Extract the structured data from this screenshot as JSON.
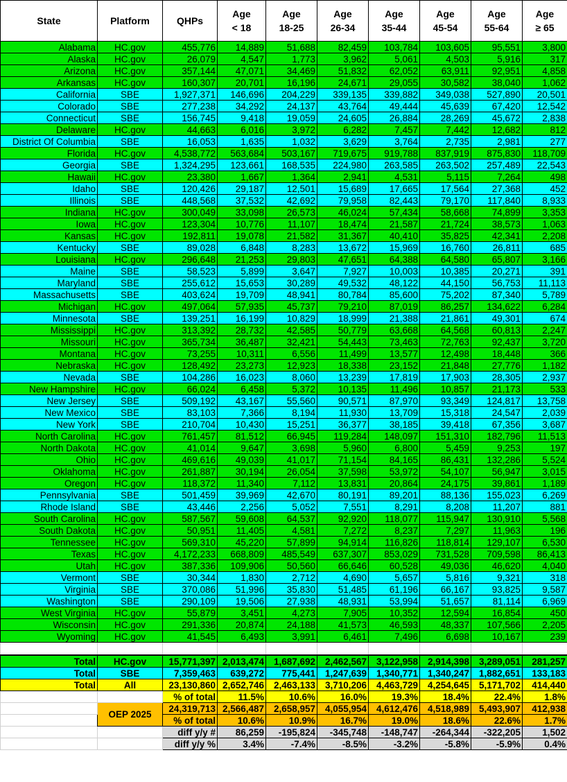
{
  "colors": {
    "hc": "#00e600",
    "sbe": "#00ffff",
    "total": "#ffff00",
    "oep": "#ffc000",
    "diff": "#d9d9d9"
  },
  "headers": [
    "State",
    "Platform",
    "QHPs",
    "Age\n< 18",
    "Age\n18-25",
    "Age\n26-34",
    "Age\n35-44",
    "Age\n45-54",
    "Age\n55-64",
    "Age\n≥ 65"
  ],
  "rows": [
    [
      "Alabama",
      "HC.gov",
      "455,776",
      "14,889",
      "51,688",
      "82,459",
      "103,784",
      "103,605",
      "95,551",
      "3,800"
    ],
    [
      "Alaska",
      "HC.gov",
      "26,079",
      "4,547",
      "1,773",
      "3,962",
      "5,061",
      "4,503",
      "5,916",
      "317"
    ],
    [
      "Arizona",
      "HC.gov",
      "357,144",
      "47,071",
      "34,469",
      "51,832",
      "62,052",
      "63,911",
      "92,951",
      "4,858"
    ],
    [
      "Arkansas",
      "HC.gov",
      "160,307",
      "20,701",
      "16,196",
      "24,671",
      "29,055",
      "30,582",
      "38,040",
      "1,062"
    ],
    [
      "California",
      "SBE",
      "1,927,371",
      "146,696",
      "204,229",
      "339,135",
      "339,882",
      "349,038",
      "527,890",
      "20,501"
    ],
    [
      "Colorado",
      "SBE",
      "277,238",
      "34,292",
      "24,137",
      "43,764",
      "49,444",
      "45,639",
      "67,420",
      "12,542"
    ],
    [
      "Connecticut",
      "SBE",
      "156,745",
      "9,418",
      "19,059",
      "24,605",
      "26,884",
      "28,269",
      "45,672",
      "2,838"
    ],
    [
      "Delaware",
      "HC.gov",
      "44,663",
      "6,016",
      "3,972",
      "6,282",
      "7,457",
      "7,442",
      "12,682",
      "812"
    ],
    [
      "District Of Columbia",
      "SBE",
      "16,053",
      "1,635",
      "1,032",
      "3,629",
      "3,764",
      "2,735",
      "2,981",
      "277"
    ],
    [
      "Florida",
      "HC.gov",
      "4,538,772",
      "563,684",
      "503,167",
      "719,675",
      "919,788",
      "837,919",
      "875,830",
      "118,709"
    ],
    [
      "Georgia",
      "SBE",
      "1,324,295",
      "123,661",
      "168,535",
      "224,980",
      "263,585",
      "263,502",
      "257,489",
      "22,543"
    ],
    [
      "Hawaii",
      "HC.gov",
      "23,380",
      "1,667",
      "1,364",
      "2,941",
      "4,531",
      "5,115",
      "7,264",
      "498"
    ],
    [
      "Idaho",
      "SBE",
      "120,426",
      "29,187",
      "12,501",
      "15,689",
      "17,665",
      "17,564",
      "27,368",
      "452"
    ],
    [
      "Illinois",
      "SBE",
      "448,568",
      "37,532",
      "42,692",
      "79,958",
      "82,443",
      "79,170",
      "117,840",
      "8,933"
    ],
    [
      "Indiana",
      "HC.gov",
      "300,049",
      "33,098",
      "26,573",
      "46,024",
      "57,434",
      "58,668",
      "74,899",
      "3,353"
    ],
    [
      "Iowa",
      "HC.gov",
      "123,304",
      "10,776",
      "11,107",
      "18,474",
      "21,587",
      "21,724",
      "38,573",
      "1,063"
    ],
    [
      "Kansas",
      "HC.gov",
      "192,811",
      "19,078",
      "21,582",
      "31,367",
      "40,410",
      "35,825",
      "42,341",
      "2,208"
    ],
    [
      "Kentucky",
      "SBE",
      "89,028",
      "6,848",
      "8,283",
      "13,672",
      "15,969",
      "16,760",
      "26,811",
      "685"
    ],
    [
      "Louisiana",
      "HC.gov",
      "296,648",
      "21,253",
      "29,803",
      "47,651",
      "64,388",
      "64,580",
      "65,807",
      "3,166"
    ],
    [
      "Maine",
      "SBE",
      "58,523",
      "5,899",
      "3,647",
      "7,927",
      "10,003",
      "10,385",
      "20,271",
      "391"
    ],
    [
      "Maryland",
      "SBE",
      "255,612",
      "15,653",
      "30,289",
      "49,532",
      "48,122",
      "44,150",
      "56,753",
      "11,113"
    ],
    [
      "Massachusetts",
      "SBE",
      "403,624",
      "19,709",
      "48,941",
      "80,784",
      "85,600",
      "75,202",
      "87,340",
      "5,789"
    ],
    [
      "Michigan",
      "HC.gov",
      "497,064",
      "57,935",
      "45,737",
      "79,210",
      "87,019",
      "86,257",
      "134,622",
      "6,284"
    ],
    [
      "Minnesota",
      "SBE",
      "139,251",
      "16,199",
      "10,829",
      "18,999",
      "21,388",
      "21,861",
      "49,301",
      "674"
    ],
    [
      "Mississippi",
      "HC.gov",
      "313,392",
      "28,732",
      "42,585",
      "50,779",
      "63,668",
      "64,568",
      "60,813",
      "2,247"
    ],
    [
      "Missouri",
      "HC.gov",
      "365,734",
      "36,487",
      "32,421",
      "54,443",
      "73,463",
      "72,763",
      "92,437",
      "3,720"
    ],
    [
      "Montana",
      "HC.gov",
      "73,255",
      "10,311",
      "6,556",
      "11,499",
      "13,577",
      "12,498",
      "18,448",
      "366"
    ],
    [
      "Nebraska",
      "HC.gov",
      "128,492",
      "23,273",
      "12,923",
      "18,338",
      "23,152",
      "21,848",
      "27,776",
      "1,182"
    ],
    [
      "Nevada",
      "SBE",
      "104,286",
      "16,023",
      "8,060",
      "13,239",
      "17,819",
      "17,903",
      "28,305",
      "2,937"
    ],
    [
      "New Hampshire",
      "HC.gov",
      "66,024",
      "6,458",
      "5,372",
      "10,135",
      "11,496",
      "10,857",
      "21,173",
      "533"
    ],
    [
      "New Jersey",
      "SBE",
      "509,192",
      "43,167",
      "55,560",
      "90,571",
      "87,970",
      "93,349",
      "124,817",
      "13,758"
    ],
    [
      "New Mexico",
      "SBE",
      "83,103",
      "7,366",
      "8,194",
      "11,930",
      "13,709",
      "15,318",
      "24,547",
      "2,039"
    ],
    [
      "New York",
      "SBE",
      "210,704",
      "10,430",
      "15,251",
      "36,377",
      "38,185",
      "39,418",
      "67,356",
      "3,687"
    ],
    [
      "North Carolina",
      "HC.gov",
      "761,457",
      "81,512",
      "66,945",
      "119,284",
      "148,097",
      "151,310",
      "182,796",
      "11,513"
    ],
    [
      "North Dakota",
      "HC.gov",
      "41,014",
      "9,647",
      "3,698",
      "5,960",
      "6,800",
      "5,459",
      "9,253",
      "197"
    ],
    [
      "Ohio",
      "HC.gov",
      "469,616",
      "49,039",
      "41,017",
      "71,154",
      "84,165",
      "86,431",
      "132,286",
      "5,524"
    ],
    [
      "Oklahoma",
      "HC.gov",
      "261,887",
      "30,194",
      "26,054",
      "37,598",
      "53,972",
      "54,107",
      "56,947",
      "3,015"
    ],
    [
      "Oregon",
      "HC.gov",
      "118,372",
      "11,340",
      "7,112",
      "13,831",
      "20,864",
      "24,175",
      "39,861",
      "1,189"
    ],
    [
      "Pennsylvania",
      "SBE",
      "501,459",
      "39,969",
      "42,670",
      "80,191",
      "89,201",
      "88,136",
      "155,023",
      "6,269"
    ],
    [
      "Rhode Island",
      "SBE",
      "43,446",
      "2,256",
      "5,052",
      "7,551",
      "8,291",
      "8,208",
      "11,207",
      "881"
    ],
    [
      "South Carolina",
      "HC.gov",
      "587,567",
      "59,608",
      "64,537",
      "92,920",
      "118,077",
      "115,947",
      "130,910",
      "5,568"
    ],
    [
      "South Dakota",
      "HC.gov",
      "50,951",
      "11,405",
      "4,581",
      "7,272",
      "8,237",
      "7,297",
      "11,963",
      "196"
    ],
    [
      "Tennessee",
      "HC.gov",
      "569,310",
      "45,220",
      "57,899",
      "94,914",
      "116,826",
      "118,814",
      "129,107",
      "6,530"
    ],
    [
      "Texas",
      "HC.gov",
      "4,172,233",
      "668,809",
      "485,549",
      "637,307",
      "853,029",
      "731,528",
      "709,598",
      "86,413"
    ],
    [
      "Utah",
      "HC.gov",
      "387,336",
      "109,906",
      "50,560",
      "66,646",
      "60,528",
      "49,036",
      "46,620",
      "4,040"
    ],
    [
      "Vermont",
      "SBE",
      "30,344",
      "1,830",
      "2,712",
      "4,690",
      "5,657",
      "5,816",
      "9,321",
      "318"
    ],
    [
      "Virginia",
      "SBE",
      "370,086",
      "51,996",
      "35,830",
      "51,485",
      "61,196",
      "66,167",
      "93,825",
      "9,587"
    ],
    [
      "Washington",
      "SBE",
      "290,109",
      "19,506",
      "27,938",
      "48,931",
      "53,994",
      "51,657",
      "81,114",
      "6,969"
    ],
    [
      "West Virginia",
      "HC.gov",
      "55,879",
      "3,451",
      "4,273",
      "7,905",
      "10,352",
      "12,594",
      "16,854",
      "450"
    ],
    [
      "Wisconsin",
      "HC.gov",
      "291,336",
      "20,874",
      "24,188",
      "41,573",
      "46,593",
      "48,337",
      "107,566",
      "2,205"
    ],
    [
      "Wyoming",
      "HC.gov",
      "41,545",
      "6,493",
      "3,991",
      "6,461",
      "7,496",
      "6,698",
      "10,167",
      "239"
    ]
  ],
  "totals": [
    [
      "Total",
      "HC.gov",
      "15,771,397",
      "2,013,474",
      "1,687,692",
      "2,462,567",
      "3,122,958",
      "2,914,398",
      "3,289,051",
      "281,257"
    ],
    [
      "Total",
      "SBE",
      "7,359,463",
      "639,272",
      "775,441",
      "1,247,639",
      "1,340,771",
      "1,340,247",
      "1,882,651",
      "133,183"
    ],
    [
      "Total",
      "All",
      "23,130,860",
      "2,652,746",
      "2,463,133",
      "3,710,206",
      "4,463,729",
      "4,254,645",
      "5,171,702",
      "414,440"
    ]
  ],
  "pct_total": {
    "label": "% of total",
    "values": [
      "11.5%",
      "10.6%",
      "16.0%",
      "19.3%",
      "18.4%",
      "22.4%",
      "1.8%"
    ]
  },
  "oep": {
    "label": "OEP 2025",
    "qhps": "24,319,713",
    "values": [
      "2,566,487",
      "2,658,957",
      "4,055,954",
      "4,612,476",
      "4,518,989",
      "5,493,907",
      "412,938"
    ],
    "pct_label": "% of total",
    "pct_values": [
      "10.6%",
      "10.9%",
      "16.7%",
      "19.0%",
      "18.6%",
      "22.6%",
      "1.7%"
    ]
  },
  "diff_num": {
    "label": "diff y/y #",
    "values": [
      "86,259",
      "-195,824",
      "-345,748",
      "-148,747",
      "-264,344",
      "-322,205",
      "1,502"
    ]
  },
  "diff_pct": {
    "label": "diff y/y %",
    "values": [
      "3.4%",
      "-7.4%",
      "-8.5%",
      "-3.2%",
      "-5.8%",
      "-5.9%",
      "0.4%"
    ]
  }
}
